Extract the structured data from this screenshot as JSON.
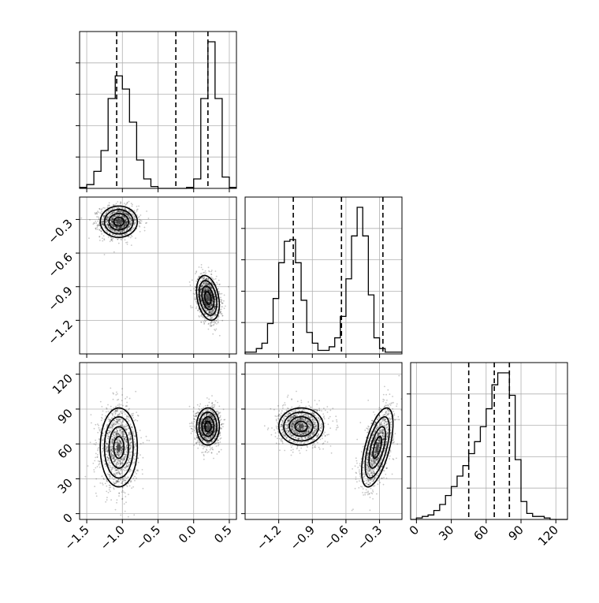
{
  "chart_data": {
    "type": "corner",
    "grid": true,
    "variables": [
      {
        "id": "p0",
        "range": [
          -1.6,
          0.6
        ],
        "ticks": [
          -1.5,
          -1.0,
          -0.5,
          0.0,
          0.5
        ],
        "tick_labels": [
          "−1.5",
          "−1.0",
          "−0.5",
          "0.0",
          "0.5"
        ]
      },
      {
        "id": "p1",
        "range": [
          -1.5,
          -0.1
        ],
        "ticks": [
          -1.2,
          -0.9,
          -0.6,
          -0.3
        ],
        "tick_labels": [
          "−1.2",
          "−0.9",
          "−0.6",
          "−0.3"
        ]
      },
      {
        "id": "p2",
        "range": [
          -5,
          130
        ],
        "ticks": [
          0,
          30,
          60,
          90,
          120
        ],
        "tick_labels": [
          "0",
          "30",
          "60",
          "90",
          "120"
        ]
      }
    ],
    "histograms": [
      {
        "var": 0,
        "bins": [
          -1.6,
          -1.5,
          -1.4,
          -1.3,
          -1.2,
          -1.1,
          -1.0,
          -0.9,
          -0.8,
          -0.7,
          -0.6,
          -0.5,
          -0.4,
          -0.3,
          -0.2,
          -0.1,
          0.0,
          0.1,
          0.2,
          0.3,
          0.4,
          0.5,
          0.6
        ],
        "counts": [
          0.01,
          0.04,
          0.18,
          0.4,
          0.95,
          1.19,
          1.05,
          0.7,
          0.3,
          0.1,
          0.02,
          0,
          0,
          0,
          0,
          0.01,
          0.1,
          0.95,
          1.55,
          0.95,
          0.12,
          0.01
        ],
        "quantiles": [
          -1.08,
          -0.25,
          0.2
        ]
      },
      {
        "var": 1,
        "bins": [
          -1.5,
          -1.45,
          -1.4,
          -1.35,
          -1.3,
          -1.25,
          -1.2,
          -1.15,
          -1.1,
          -1.05,
          -1.0,
          -0.95,
          -0.9,
          -0.85,
          -0.8,
          -0.75,
          -0.7,
          -0.65,
          -0.6,
          -0.55,
          -0.5,
          -0.45,
          -0.4,
          -0.35,
          -0.3,
          -0.25,
          -0.2,
          -0.15,
          -0.1
        ],
        "counts": [
          0.01,
          0.01,
          0.03,
          0.06,
          0.17,
          0.31,
          0.51,
          0.63,
          0.64,
          0.51,
          0.3,
          0.12,
          0.06,
          0.02,
          0.02,
          0.04,
          0.09,
          0.21,
          0.42,
          0.66,
          0.82,
          0.66,
          0.33,
          0.09,
          0.03,
          0.01,
          0.01,
          0.01
        ],
        "quantiles": [
          -1.07,
          -0.64,
          -0.27
        ]
      },
      {
        "var": 2,
        "bins": [
          -5,
          0,
          5,
          10,
          15,
          20,
          25,
          30,
          35,
          40,
          45,
          50,
          55,
          60,
          65,
          70,
          75,
          80,
          85,
          90,
          95,
          100,
          105,
          110,
          115,
          120,
          125,
          130
        ],
        "counts": [
          0,
          0.01,
          0.02,
          0.03,
          0.06,
          0.1,
          0.16,
          0.22,
          0.29,
          0.36,
          0.44,
          0.52,
          0.62,
          0.74,
          0.9,
          0.98,
          0.98,
          0.83,
          0.4,
          0.12,
          0.04,
          0.02,
          0.02,
          0.01,
          0,
          0,
          0
        ],
        "quantiles": [
          45,
          67,
          80
        ]
      }
    ],
    "joint_2d": [
      {
        "x_var": 0,
        "y_var": 1,
        "modes": [
          {
            "center": [
              -1.05,
              -0.32
            ],
            "sd": [
              0.13,
              0.07
            ],
            "rho": 0.0,
            "weight": 0.5
          },
          {
            "center": [
              0.2,
              -1.0
            ],
            "sd": [
              0.08,
              0.1
            ],
            "rho": -0.3,
            "weight": 0.5
          }
        ]
      },
      {
        "x_var": 0,
        "y_var": 2,
        "modes": [
          {
            "center": [
              -1.05,
              57
            ],
            "sd": [
              0.13,
              17
            ],
            "rho": 0.0,
            "weight": 0.5
          },
          {
            "center": [
              0.2,
              75
            ],
            "sd": [
              0.08,
              8
            ],
            "rho": 0.0,
            "weight": 0.5
          }
        ]
      },
      {
        "x_var": 1,
        "y_var": 2,
        "modes": [
          {
            "center": [
              -1.0,
              75
            ],
            "sd": [
              0.1,
              8
            ],
            "rho": 0.0,
            "weight": 0.5
          },
          {
            "center": [
              -0.32,
              57
            ],
            "sd": [
              0.07,
              17
            ],
            "rho": 0.6,
            "weight": 0.5
          }
        ]
      }
    ]
  }
}
